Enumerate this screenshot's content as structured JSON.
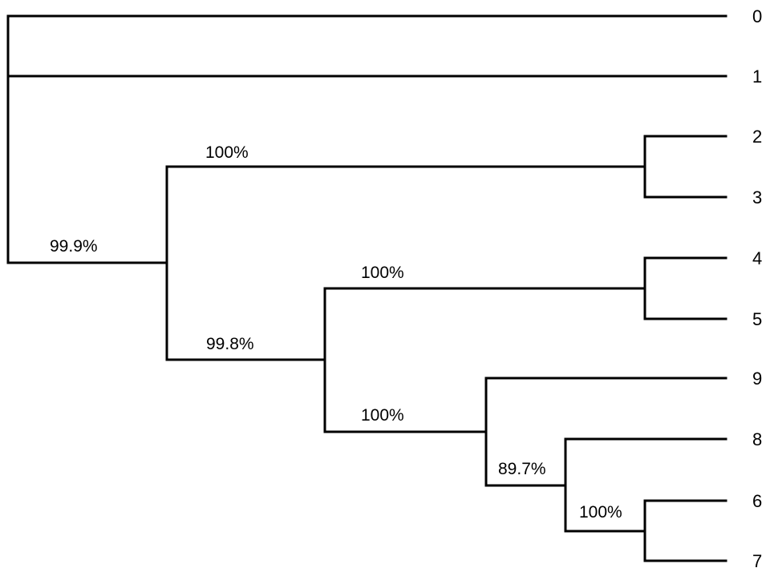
{
  "diagram": {
    "type": "phylogenetic-tree",
    "leaves": [
      "0",
      "1",
      "2",
      "3",
      "4",
      "5",
      "9",
      "8",
      "6",
      "7"
    ],
    "support_values": [
      "99.9%",
      "100%",
      "99.8%",
      "100%",
      "100%",
      "89.7%",
      "100%"
    ],
    "edge_color": "#000000",
    "text_color": "#000000"
  }
}
